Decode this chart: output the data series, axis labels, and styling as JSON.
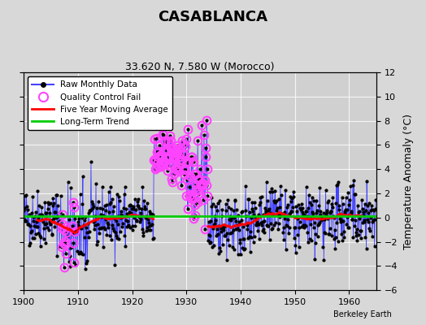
{
  "title": "CASABLANCA",
  "subtitle": "33.620 N, 7.580 W (Morocco)",
  "ylabel": "Temperature Anomaly (°C)",
  "credit": "Berkeley Earth",
  "xlim": [
    1900,
    1965
  ],
  "ylim": [
    -6,
    12
  ],
  "yticks": [
    -6,
    -4,
    -2,
    0,
    2,
    4,
    6,
    8,
    10,
    12
  ],
  "xticks": [
    1900,
    1910,
    1920,
    1930,
    1940,
    1950,
    1960
  ],
  "bg_color": "#d8d8d8",
  "plot_bg_color": "#d0d0d0",
  "line_color": "#4444ff",
  "marker_color": "#000000",
  "qc_color": "#ff44ff",
  "ma_color": "#ff0000",
  "trend_color": "#00cc00",
  "trend_value": 0.15
}
